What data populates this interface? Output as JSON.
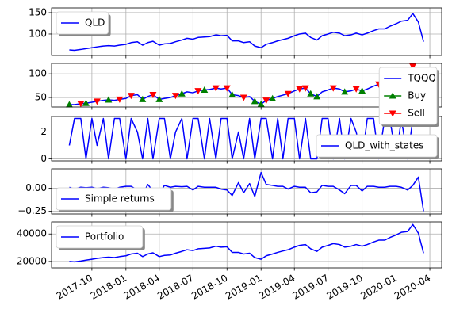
{
  "x_axis": {
    "x": [
      "2017-08-01",
      "2017-08-15",
      "2017-09-01",
      "2017-09-15",
      "2017-10-01",
      "2017-10-15",
      "2017-11-01",
      "2017-11-15",
      "2017-12-01",
      "2017-12-15",
      "2018-01-01",
      "2018-01-15",
      "2018-02-01",
      "2018-02-15",
      "2018-03-01",
      "2018-03-15",
      "2018-04-01",
      "2018-04-15",
      "2018-05-01",
      "2018-05-15",
      "2018-06-01",
      "2018-06-15",
      "2018-07-01",
      "2018-07-15",
      "2018-08-01",
      "2018-08-15",
      "2018-09-01",
      "2018-09-15",
      "2018-10-01",
      "2018-10-15",
      "2018-11-01",
      "2018-11-15",
      "2018-12-01",
      "2018-12-15",
      "2019-01-01",
      "2019-01-15",
      "2019-02-01",
      "2019-02-15",
      "2019-03-01",
      "2019-03-15",
      "2019-04-01",
      "2019-04-15",
      "2019-05-01",
      "2019-05-15",
      "2019-06-01",
      "2019-06-15",
      "2019-07-01",
      "2019-07-15",
      "2019-08-01",
      "2019-08-15",
      "2019-09-01",
      "2019-09-15",
      "2019-10-01",
      "2019-10-15",
      "2019-11-01",
      "2019-11-15",
      "2019-12-01",
      "2019-12-15",
      "2020-01-01",
      "2020-01-15",
      "2020-02-01",
      "2020-02-15",
      "2020-03-01",
      "2020-03-15"
    ],
    "xlim": [
      "2017-06-14",
      "2020-05-03"
    ],
    "xticks": [
      "2017-10",
      "2018-01",
      "2018-04",
      "2018-07",
      "2018-10",
      "2019-01",
      "2019-04",
      "2019-07",
      "2019-10",
      "2020-01",
      "2020-04"
    ]
  },
  "chart_data": [
    {
      "type": "line",
      "ylim": [
        50,
        161
      ],
      "yticks": [
        100,
        150
      ],
      "grid": true,
      "legend": "upper left",
      "series": [
        {
          "name": "QLD",
          "color": "#0000ff",
          "values": [
            63,
            62,
            64,
            66,
            68,
            70,
            72,
            73,
            72,
            74,
            76,
            80,
            82,
            74,
            80,
            83,
            74,
            77,
            78,
            82,
            86,
            90,
            88,
            92,
            93,
            94,
            98,
            96,
            97,
            84,
            84,
            80,
            82,
            72,
            68,
            76,
            80,
            84,
            87,
            90,
            96,
            100,
            102,
            92,
            86,
            96,
            100,
            104,
            102,
            96,
            98,
            102,
            98,
            102,
            108,
            112,
            112,
            118,
            124,
            130,
            132,
            148,
            128,
            82
          ]
        }
      ]
    },
    {
      "type": "line",
      "ylim": [
        30,
        122
      ],
      "yticks": [
        50,
        100
      ],
      "grid": true,
      "legend": "upper right",
      "series": [
        {
          "name": "TQQQ",
          "color": "#0000ff",
          "values": [
            35,
            35,
            37,
            38,
            40,
            42,
            44,
            45,
            44,
            46,
            48,
            54,
            56,
            46,
            52,
            56,
            46,
            48,
            50,
            54,
            58,
            62,
            60,
            64,
            66,
            67,
            70,
            68,
            70,
            56,
            54,
            50,
            52,
            42,
            36,
            44,
            48,
            52,
            55,
            58,
            64,
            68,
            70,
            58,
            52,
            62,
            66,
            70,
            68,
            62,
            64,
            68,
            64,
            68,
            74,
            78,
            78,
            84,
            92,
            100,
            102,
            116,
            92,
            50
          ]
        },
        {
          "name": "Buy",
          "color": "#008000",
          "marker": "^",
          "x": [
            "2017-08-01",
            "2017-09-15",
            "2017-11-15",
            "2018-02-15",
            "2018-04-01",
            "2018-06-01",
            "2018-08-01",
            "2018-10-15",
            "2018-12-15",
            "2019-01-01",
            "2019-02-01",
            "2019-05-15",
            "2019-06-01",
            "2019-08-15",
            "2019-10-01",
            "2020-03-01"
          ],
          "values": [
            35,
            38,
            45,
            46,
            46,
            58,
            66,
            56,
            42,
            36,
            48,
            58,
            52,
            62,
            64,
            92
          ]
        },
        {
          "name": "Sell",
          "color": "#ff0000",
          "marker": "v",
          "x": [
            "2017-09-01",
            "2017-10-15",
            "2017-12-15",
            "2018-01-15",
            "2018-03-15",
            "2018-05-15",
            "2018-07-15",
            "2018-09-01",
            "2018-10-01",
            "2018-11-15",
            "2019-01-15",
            "2019-03-15",
            "2019-04-15",
            "2019-05-01",
            "2019-07-15",
            "2019-09-15",
            "2019-11-15",
            "2020-02-15"
          ],
          "values": [
            37,
            42,
            46,
            54,
            56,
            54,
            64,
            70,
            70,
            50,
            44,
            58,
            68,
            70,
            70,
            68,
            78,
            116
          ]
        }
      ]
    },
    {
      "type": "line",
      "ylim": [
        -0.15,
        3.15
      ],
      "yticks": [
        0,
        2
      ],
      "grid": true,
      "legend": "lower right",
      "series": [
        {
          "name": "QLD_with_states",
          "color": "#0000ff",
          "values": [
            1,
            3,
            3,
            0,
            3,
            1,
            3,
            0,
            3,
            3,
            0,
            3,
            2,
            0,
            3,
            0,
            3,
            3,
            0,
            2,
            3,
            0,
            3,
            3,
            0,
            3,
            0,
            3,
            3,
            0,
            2,
            0,
            3,
            0,
            3,
            3,
            0,
            3,
            0,
            3,
            3,
            0,
            3,
            0,
            0,
            3,
            3,
            0,
            3,
            0,
            3,
            2,
            0,
            3,
            3,
            0,
            3,
            3,
            0,
            3,
            0,
            3,
            3,
            3
          ]
        }
      ]
    },
    {
      "type": "line",
      "ylim": [
        -0.28,
        0.21
      ],
      "yticks": [
        {
          "value": 0,
          "label": "0.00"
        },
        {
          "value": -0.25,
          "label": "−0.25"
        }
      ],
      "grid": true,
      "legend": "lower left",
      "series": [
        {
          "name": "Simple returns",
          "color": "#0000ff",
          "values": [
            0.01,
            -0.01,
            0.01,
            0.005,
            0.01,
            -0.005,
            0.01,
            0.005,
            -0.01,
            0.01,
            0.02,
            0.02,
            -0.02,
            -0.07,
            0.04,
            -0.03,
            -0.06,
            0.03,
            0.01,
            0.02,
            0.015,
            0.02,
            -0.02,
            0.02,
            0.01,
            0.01,
            0.01,
            -0.01,
            -0.02,
            -0.08,
            0.06,
            -0.05,
            0.05,
            -0.09,
            0.17,
            0.04,
            0.03,
            0.02,
            0.02,
            -0.01,
            0.02,
            0.01,
            0.01,
            -0.05,
            -0.04,
            0.03,
            0.02,
            0.02,
            -0.02,
            -0.06,
            0.03,
            0.03,
            -0.03,
            0.02,
            0.02,
            0.01,
            0.01,
            0.02,
            0.02,
            0.01,
            -0.02,
            0.03,
            0.12,
            -0.25
          ]
        }
      ]
    },
    {
      "type": "line",
      "ylim": [
        15300,
        48800
      ],
      "yticks": [
        20000,
        40000
      ],
      "grid": true,
      "legend": "upper left",
      "series": [
        {
          "name": "Portfolio",
          "color": "#0000ff",
          "values": [
            20000,
            19700,
            20300,
            20900,
            21600,
            22200,
            22800,
            23100,
            22800,
            23500,
            24100,
            25400,
            26000,
            23500,
            25400,
            26300,
            23500,
            24400,
            24700,
            26000,
            27300,
            28500,
            27900,
            29200,
            29500,
            29800,
            31100,
            30400,
            30700,
            26600,
            26600,
            25400,
            26000,
            22800,
            21600,
            24100,
            25400,
            26600,
            27600,
            28500,
            30400,
            31700,
            32300,
            29200,
            27300,
            30400,
            31700,
            33000,
            32300,
            30400,
            31100,
            32300,
            31100,
            32300,
            34200,
            35500,
            35500,
            37400,
            39300,
            41200,
            41800,
            46900,
            40600,
            26000
          ]
        }
      ]
    }
  ]
}
